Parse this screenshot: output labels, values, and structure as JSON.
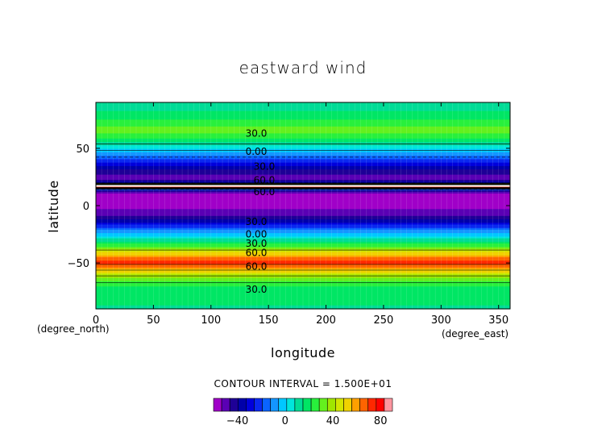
{
  "chart_data": {
    "type": "heatmap",
    "title": "eastward wind",
    "xlabel": "longitude",
    "ylabel": "latitude",
    "x_unit": "(degree_east)",
    "y_unit": "(degree_north)",
    "xlim": [
      0,
      360
    ],
    "ylim": [
      -90,
      90
    ],
    "x_ticks": [
      0,
      50,
      100,
      150,
      200,
      250,
      300,
      350
    ],
    "y_ticks": [
      50,
      0,
      -50
    ],
    "contour_interval_label": "CONTOUR INTERVAL = 1.500E+01",
    "contour_labels": [
      {
        "text": "30.0",
        "lon": 130,
        "lat": 63
      },
      {
        "text": "0.00",
        "lon": 130,
        "lat": 47
      },
      {
        "text": "30.0",
        "lon": 137,
        "lat": 34
      },
      {
        "text": "60.0",
        "lon": 137,
        "lat": 22
      },
      {
        "text": "60.0",
        "lon": 137,
        "lat": 12
      },
      {
        "text": "30.0",
        "lon": 130,
        "lat": -14
      },
      {
        "text": "0.00",
        "lon": 130,
        "lat": -25
      },
      {
        "text": "30.0",
        "lon": 130,
        "lat": -33
      },
      {
        "text": "60.0",
        "lon": 130,
        "lat": -41
      },
      {
        "text": "60.0",
        "lon": 130,
        "lat": -53
      },
      {
        "text": "30.0",
        "lon": 130,
        "lat": -73
      }
    ],
    "zonal_profile": {
      "lat": [
        90,
        80,
        70,
        66,
        62,
        55,
        50,
        45,
        40,
        35,
        32,
        28,
        25,
        22,
        20,
        18,
        16,
        14,
        12,
        10,
        8,
        5,
        0,
        -5,
        -10,
        -15,
        -20,
        -25,
        -30,
        -35,
        -40,
        -43,
        -46,
        -50,
        -54,
        -58,
        -62,
        -66,
        -70,
        -75,
        -80,
        -85,
        -90
      ],
      "u": [
        15,
        20,
        30,
        40,
        32,
        18,
        5,
        -8,
        -20,
        -30,
        -38,
        -45,
        -50,
        -45,
        -30,
        95,
        95,
        -30,
        -45,
        -55,
        -58,
        -58,
        -55,
        -52,
        -45,
        -30,
        -15,
        0,
        15,
        30,
        50,
        62,
        72,
        78,
        68,
        55,
        42,
        32,
        26,
        22,
        20,
        20,
        15
      ]
    },
    "colorbar": {
      "tick_labels": [
        "-40",
        "0",
        "40",
        "80"
      ],
      "tick_values": [
        -40,
        0,
        40,
        80
      ],
      "min": -60,
      "max": 90,
      "colors": [
        "#a000c8",
        "#5a00b4",
        "#1e0096",
        "#0000aa",
        "#0000dc",
        "#0a28f0",
        "#0a64ff",
        "#1496ff",
        "#00c8ff",
        "#00e6dc",
        "#00dc96",
        "#00e664",
        "#28f03c",
        "#64f01e",
        "#a0e600",
        "#d2e600",
        "#f0d200",
        "#ffa000",
        "#ff6400",
        "#ff2800",
        "#ff0000",
        "#ff96a0"
      ]
    },
    "series_color_encoding": "rainbow"
  }
}
